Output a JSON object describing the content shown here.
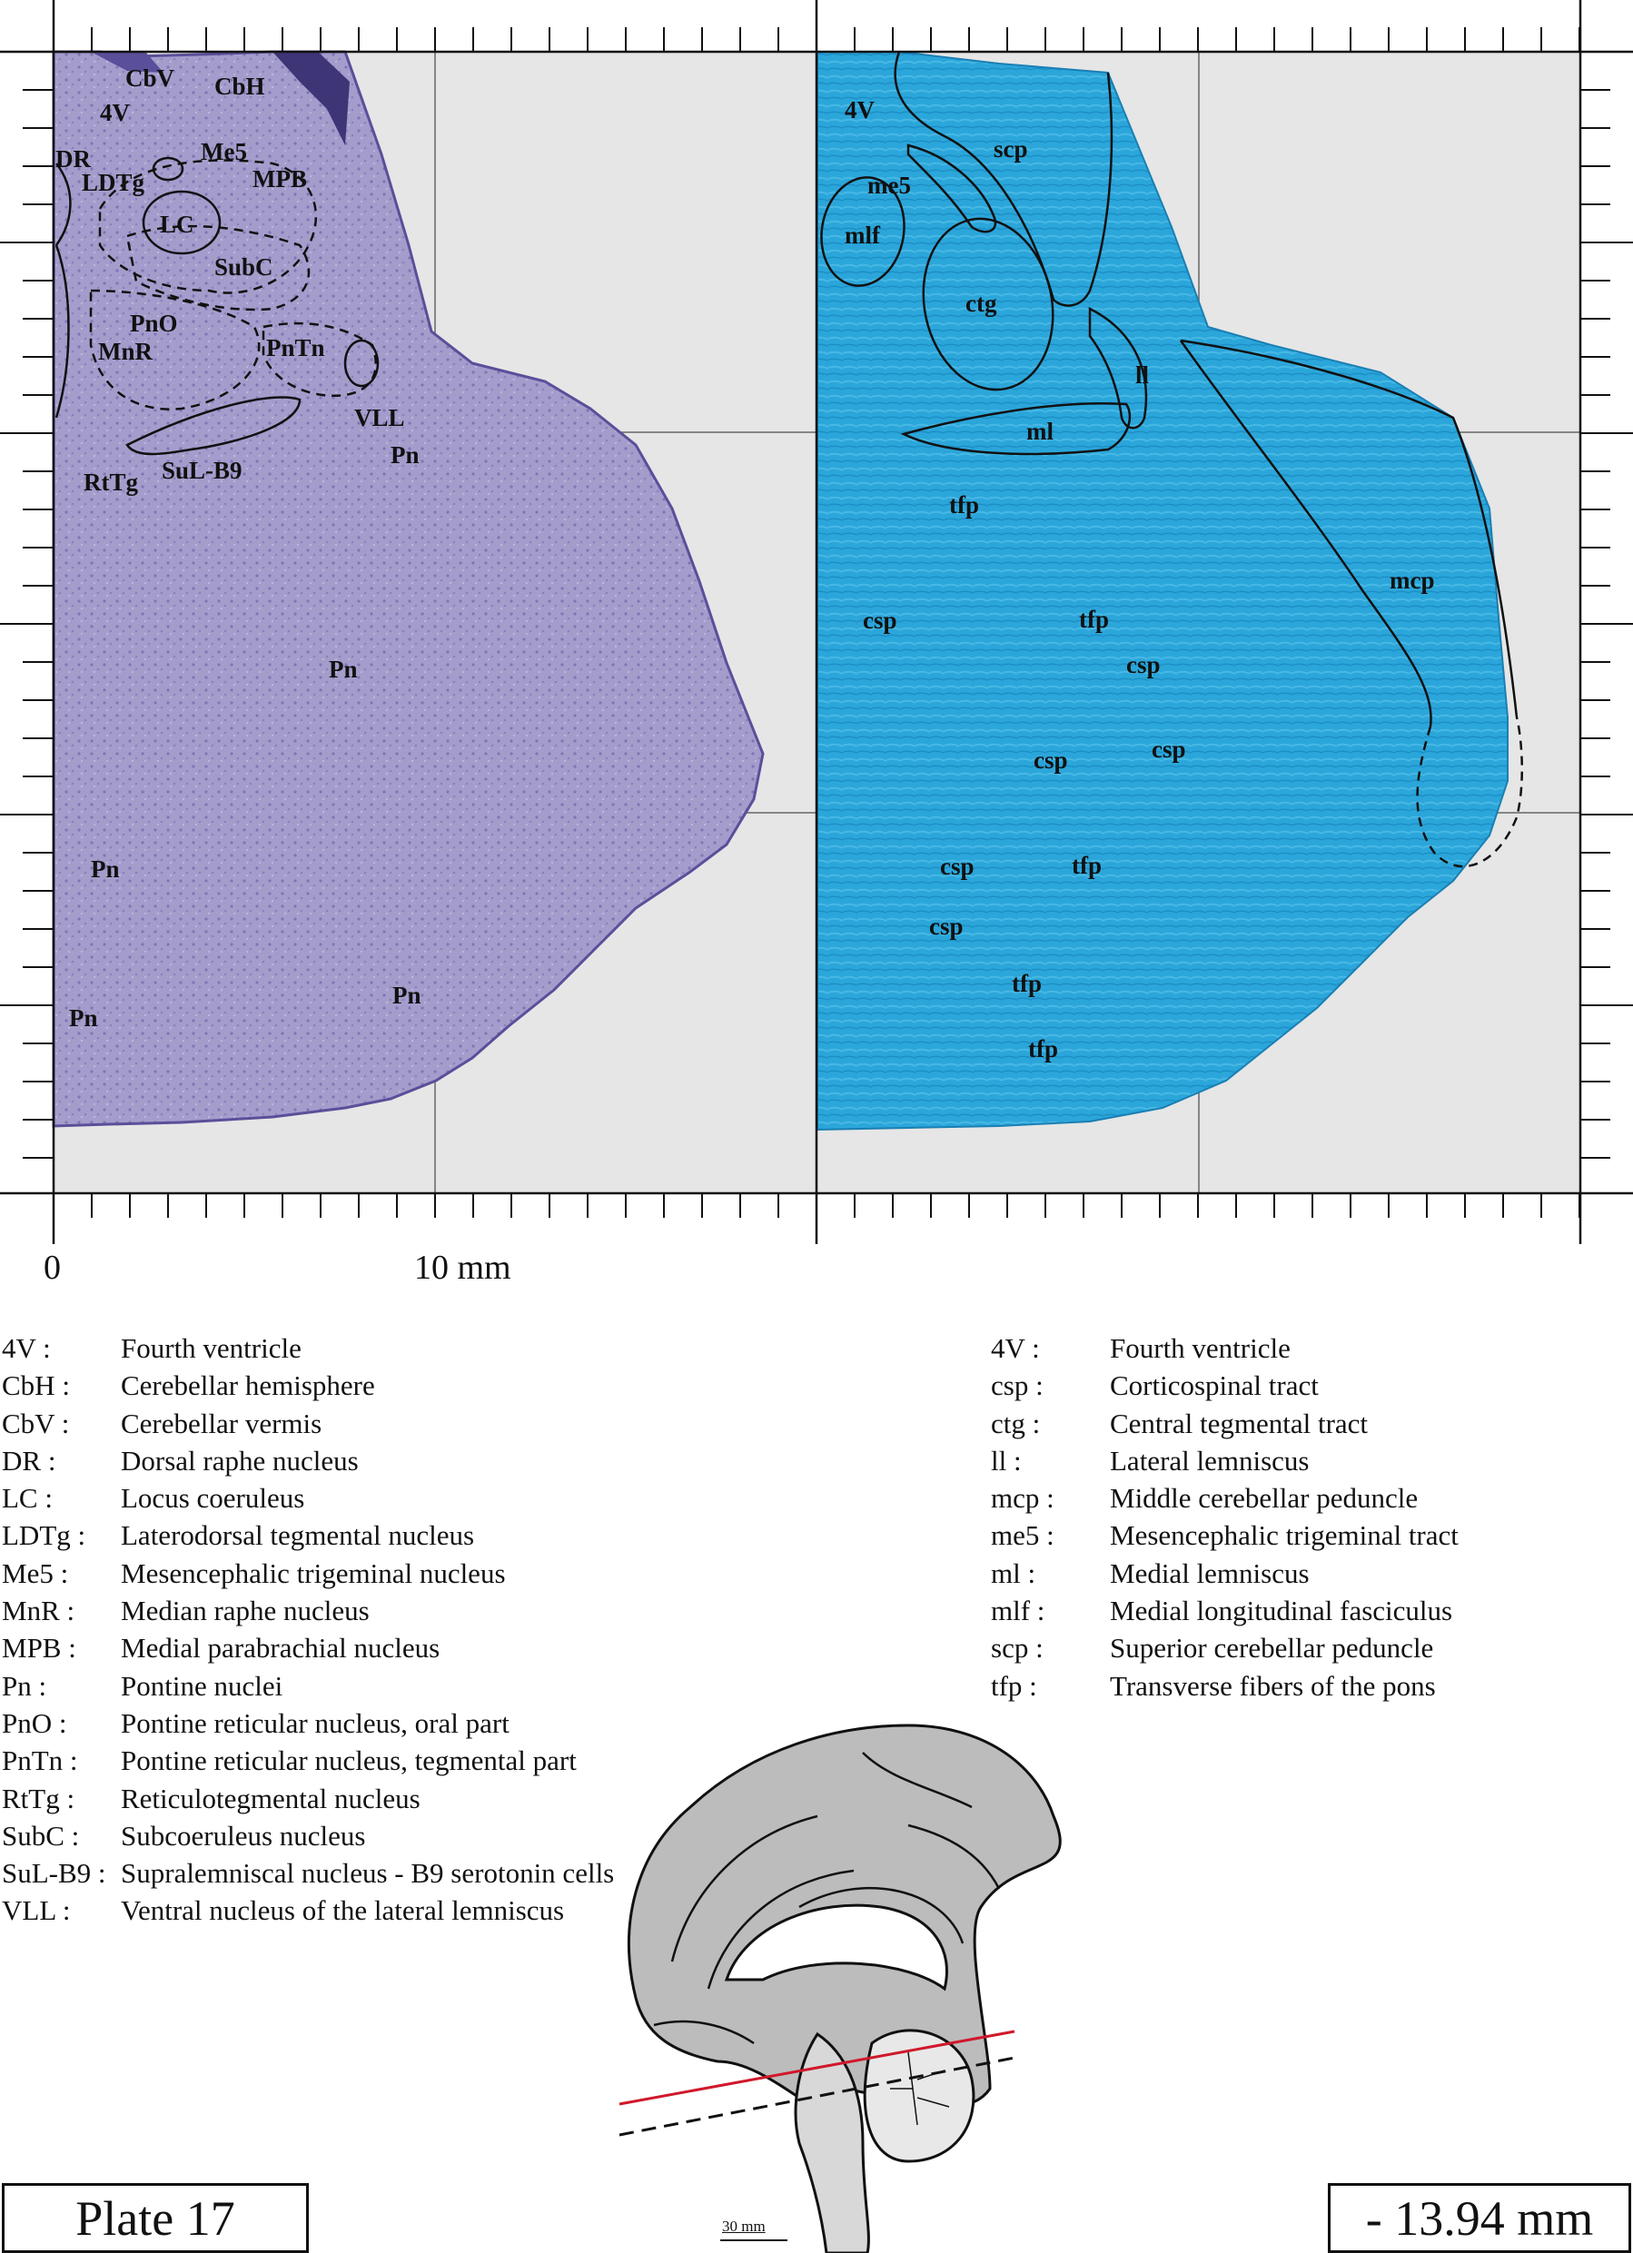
{
  "scale": {
    "zero_label": "0",
    "ten_label": "10 mm"
  },
  "left_panel_labels": {
    "cbv": "CbV",
    "cbh": "CbH",
    "fourth_v": "4V",
    "dr": "DR",
    "me5": "Me5",
    "ldtg": "LDTg",
    "mpb": "MPB",
    "lc": "LC",
    "subc": "SubC",
    "pno": "PnO",
    "mnr": "MnR",
    "pntn": "PnTn",
    "vll": "VLL",
    "rttg": "RtTg",
    "sul_b9": "SuL-B9",
    "pn": "Pn"
  },
  "right_panel_labels": {
    "fourth_v": "4V",
    "scp": "scp",
    "me5": "me5",
    "mlf": "mlf",
    "ctg": "ctg",
    "ll": "ll",
    "ml": "ml",
    "tfp": "tfp",
    "csp": "csp",
    "mcp": "mcp"
  },
  "legend_left": [
    {
      "abbr": "4V :",
      "name": "Fourth ventricle"
    },
    {
      "abbr": "CbH :",
      "name": "Cerebellar hemisphere"
    },
    {
      "abbr": "CbV :",
      "name": "Cerebellar vermis"
    },
    {
      "abbr": "DR :",
      "name": "Dorsal raphe nucleus"
    },
    {
      "abbr": "LC :",
      "name": "Locus coeruleus"
    },
    {
      "abbr": "LDTg :",
      "name": "Laterodorsal tegmental nucleus"
    },
    {
      "abbr": "Me5 :",
      "name": "Mesencephalic trigeminal nucleus"
    },
    {
      "abbr": "MnR :",
      "name": "Median raphe nucleus"
    },
    {
      "abbr": "MPB :",
      "name": "Medial parabrachial nucleus"
    },
    {
      "abbr": "Pn :",
      "name": "Pontine nuclei"
    },
    {
      "abbr": "PnO :",
      "name": "Pontine reticular nucleus, oral part"
    },
    {
      "abbr": "PnTn :",
      "name": "Pontine reticular nucleus, tegmental part"
    },
    {
      "abbr": "RtTg :",
      "name": "Reticulotegmental nucleus"
    },
    {
      "abbr": "SubC :",
      "name": "Subcoeruleus nucleus"
    },
    {
      "abbr": "SuL-B9 :",
      "name": "Supralemniscal nucleus - B9 serotonin cells"
    },
    {
      "abbr": "VLL :",
      "name": "Ventral nucleus of the lateral lemniscus"
    }
  ],
  "legend_right": [
    {
      "abbr": "4V :",
      "name": "Fourth ventricle"
    },
    {
      "abbr": "csp :",
      "name": "Corticospinal tract"
    },
    {
      "abbr": "ctg :",
      "name": "Central tegmental tract"
    },
    {
      "abbr": "ll :",
      "name": "Lateral lemniscus"
    },
    {
      "abbr": "mcp :",
      "name": "Middle cerebellar peduncle"
    },
    {
      "abbr": "me5 :",
      "name": "Mesencephalic trigeminal tract"
    },
    {
      "abbr": "ml :",
      "name": "Medial lemniscus"
    },
    {
      "abbr": "mlf :",
      "name": "Medial longitudinal fasciculus"
    },
    {
      "abbr": "scp :",
      "name": "Superior cerebellar peduncle"
    },
    {
      "abbr": "tfp :",
      "name": "Transverse fibers of the pons"
    }
  ],
  "inset": {
    "scale_bar_label": "30 mm"
  },
  "plate_label": "Plate 17",
  "coordinate_label": "- 13.94 mm",
  "colors": {
    "nissl_stain": "#9d96c9",
    "myelin_stain": "#2aa4d8",
    "panel_background": "#e6e6e6",
    "section_line": "#d0182b"
  }
}
